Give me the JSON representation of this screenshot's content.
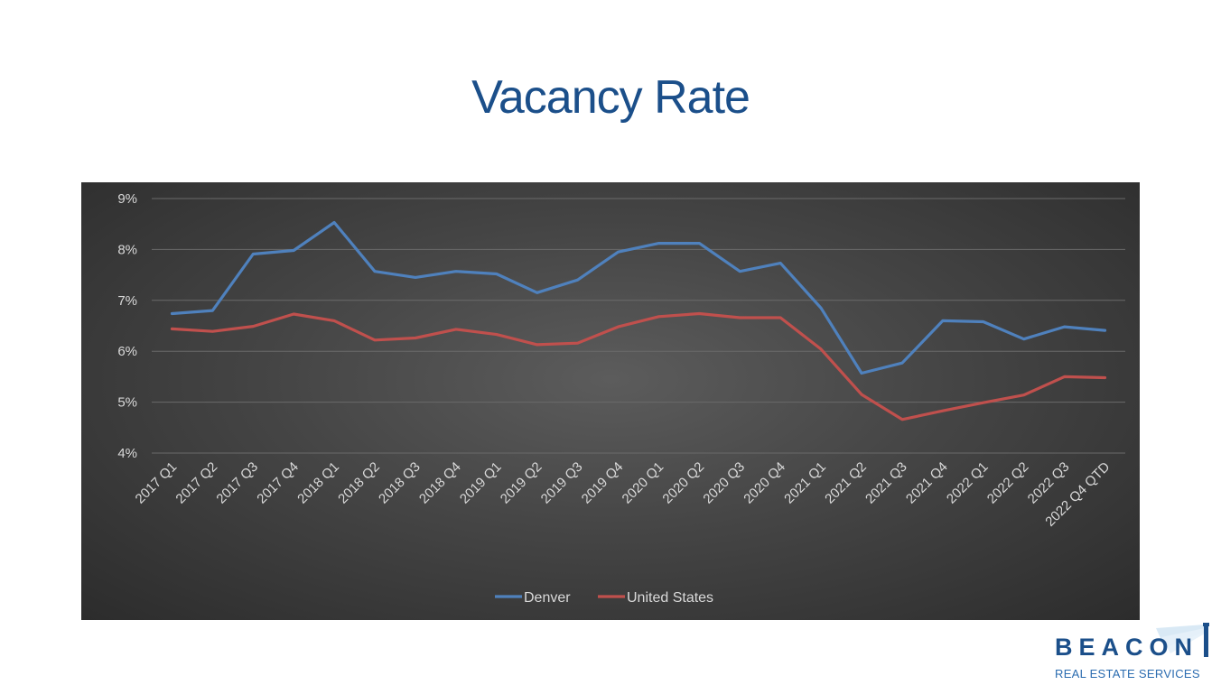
{
  "slide": {
    "title": "Vacancy Rate"
  },
  "logo": {
    "name": "BEACON",
    "subtitle": "REAL ESTATE SERVICES"
  },
  "chart_data": {
    "type": "line",
    "title": "",
    "xlabel": "",
    "ylabel": "",
    "ylim": [
      4,
      9
    ],
    "yticks": [
      "4%",
      "5%",
      "6%",
      "7%",
      "8%",
      "9%"
    ],
    "grid": true,
    "legend_position": "bottom",
    "categories": [
      "2017 Q1",
      "2017 Q2",
      "2017 Q3",
      "2017 Q4",
      "2018 Q1",
      "2018 Q2",
      "2018 Q3",
      "2018 Q4",
      "2019 Q1",
      "2019 Q2",
      "2019 Q3",
      "2019 Q4",
      "2020 Q1",
      "2020 Q2",
      "2020 Q3",
      "2020 Q4",
      "2021 Q1",
      "2021 Q2",
      "2021 Q3",
      "2021 Q4",
      "2022 Q1",
      "2022 Q2",
      "2022 Q3",
      "2022 Q4 QTD"
    ],
    "series": [
      {
        "name": "Denver",
        "color": "#4f81bd",
        "values": [
          6.74,
          6.8,
          7.91,
          7.98,
          8.53,
          7.57,
          7.45,
          7.57,
          7.52,
          7.15,
          7.4,
          7.95,
          8.12,
          8.12,
          7.57,
          7.73,
          6.85,
          5.57,
          5.77,
          6.6,
          6.58,
          6.24,
          6.48,
          6.41
        ]
      },
      {
        "name": "United States",
        "color": "#c0504d",
        "values": [
          6.44,
          6.39,
          6.49,
          6.73,
          6.6,
          6.22,
          6.26,
          6.43,
          6.33,
          6.13,
          6.16,
          6.48,
          6.68,
          6.74,
          6.66,
          6.66,
          6.04,
          5.15,
          4.66,
          4.83,
          4.99,
          5.14,
          5.5,
          5.48
        ]
      }
    ]
  }
}
